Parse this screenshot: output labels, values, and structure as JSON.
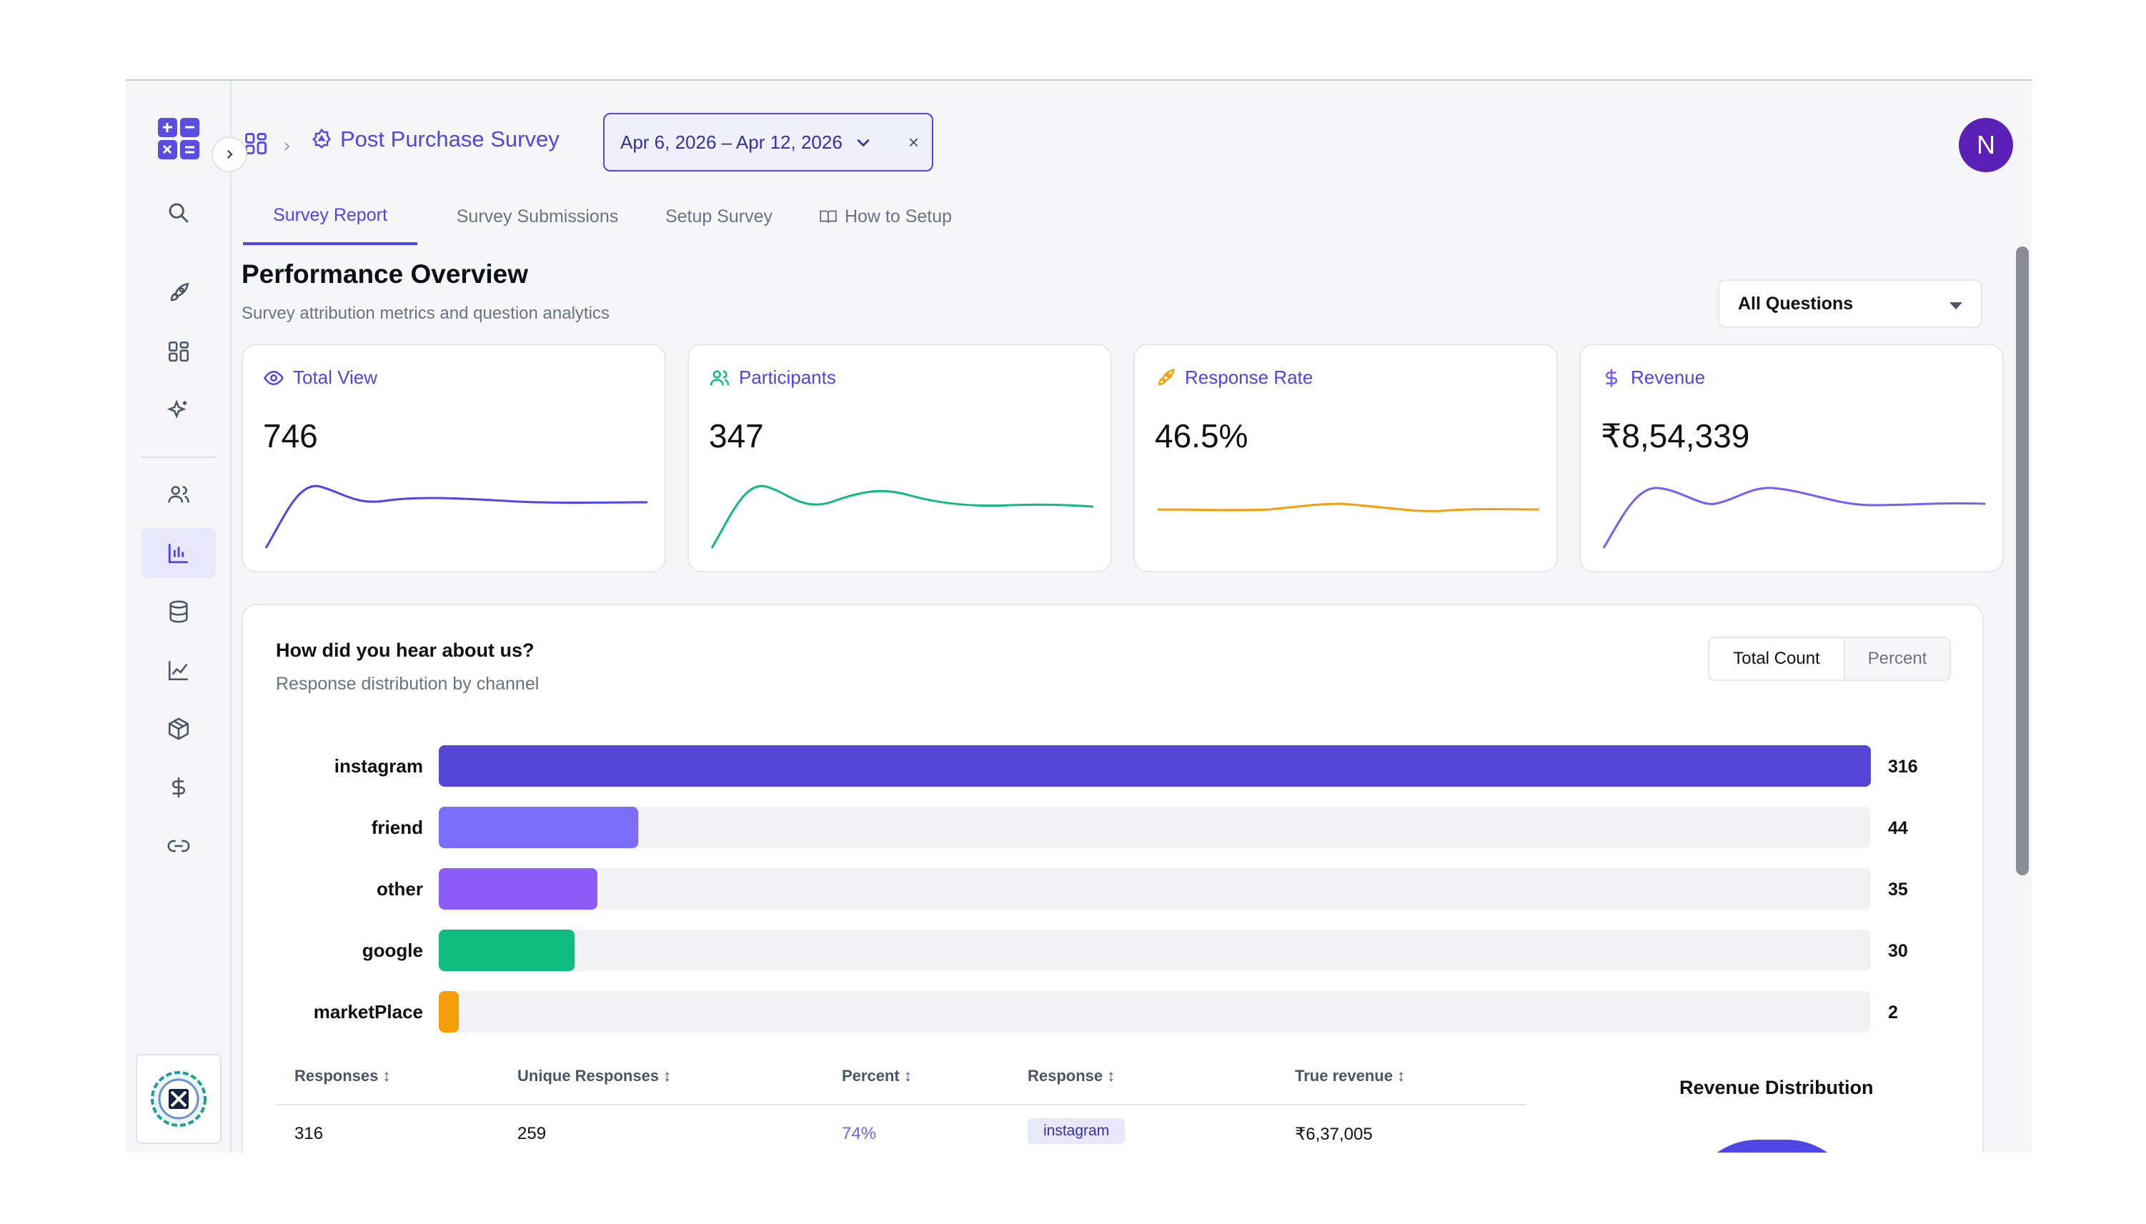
{
  "breadcrumb": {
    "title": "Post Purchase Survey"
  },
  "date_range": {
    "label": "Apr 6, 2026 – Apr 12, 2026",
    "clear": "×"
  },
  "user": {
    "initial": "N"
  },
  "tabs": [
    {
      "label": "Survey Report",
      "active": true
    },
    {
      "label": "Survey Submissions",
      "active": false
    },
    {
      "label": "Setup Survey",
      "active": false
    },
    {
      "label": "How to Setup",
      "active": false
    }
  ],
  "overview": {
    "title": "Performance Overview",
    "subtitle": "Survey attribution metrics and question analytics",
    "question_filter": "All Questions"
  },
  "stats": [
    {
      "label": "Total View",
      "value": "746",
      "color": "#4f46e5",
      "icon": "eye-icon"
    },
    {
      "label": "Participants",
      "value": "347",
      "color": "#10b981",
      "icon": "users-icon"
    },
    {
      "label": "Response Rate",
      "value": "46.5%",
      "color": "#f59e0b",
      "icon": "rocket-icon"
    },
    {
      "label": "Revenue",
      "value": "₹8,54,339",
      "color": "#7c5cf6",
      "icon": "dollar-icon"
    }
  ],
  "question_panel": {
    "title": "How did you hear about us?",
    "subtitle": "Response distribution by channel",
    "toggle": {
      "active": "Total Count",
      "inactive": "Percent"
    }
  },
  "chart_data": {
    "type": "bar",
    "orientation": "horizontal",
    "categories": [
      "instagram",
      "friend",
      "other",
      "google",
      "marketPlace"
    ],
    "values": [
      316,
      44,
      35,
      30,
      2
    ],
    "colors": [
      "#5646d6",
      "#7c6cf8",
      "#8b5cf6",
      "#10bc7f",
      "#f59e0b"
    ],
    "track_color": "#f3f3f6",
    "xlim": [
      0,
      316
    ]
  },
  "table": {
    "headers": [
      "Responses",
      "Unique Responses",
      "Percent",
      "Response",
      "True revenue"
    ],
    "rows": [
      {
        "responses": "316",
        "unique": "259",
        "percent": "74%",
        "response": "instagram",
        "revenue": "₹6,37,005"
      }
    ]
  },
  "revenue_distribution": {
    "title": "Revenue Distribution"
  }
}
